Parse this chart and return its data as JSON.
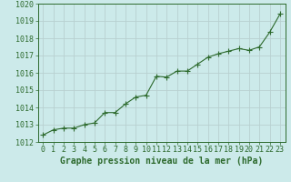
{
  "x": [
    0,
    1,
    2,
    3,
    4,
    5,
    6,
    7,
    8,
    9,
    10,
    11,
    12,
    13,
    14,
    15,
    16,
    17,
    18,
    19,
    20,
    21,
    22,
    23
  ],
  "y": [
    1012.4,
    1012.7,
    1012.8,
    1012.8,
    1013.0,
    1013.1,
    1013.7,
    1013.7,
    1014.2,
    1014.6,
    1014.7,
    1015.8,
    1015.75,
    1016.1,
    1016.1,
    1016.5,
    1016.9,
    1017.1,
    1017.25,
    1017.4,
    1017.3,
    1017.5,
    1018.35,
    1019.4
  ],
  "line_color": "#2d6a2d",
  "marker": "+",
  "marker_size": 4,
  "background_color": "#cceaea",
  "grid_color": "#b8d0d0",
  "xlabel": "Graphe pression niveau de la mer (hPa)",
  "xlabel_fontsize": 7,
  "tick_fontsize": 6,
  "ylim": [
    1012,
    1020
  ],
  "xlim": [
    -0.5,
    23.5
  ],
  "yticks": [
    1012,
    1013,
    1014,
    1015,
    1016,
    1017,
    1018,
    1019,
    1020
  ],
  "xticks": [
    0,
    1,
    2,
    3,
    4,
    5,
    6,
    7,
    8,
    9,
    10,
    11,
    12,
    13,
    14,
    15,
    16,
    17,
    18,
    19,
    20,
    21,
    22,
    23
  ]
}
